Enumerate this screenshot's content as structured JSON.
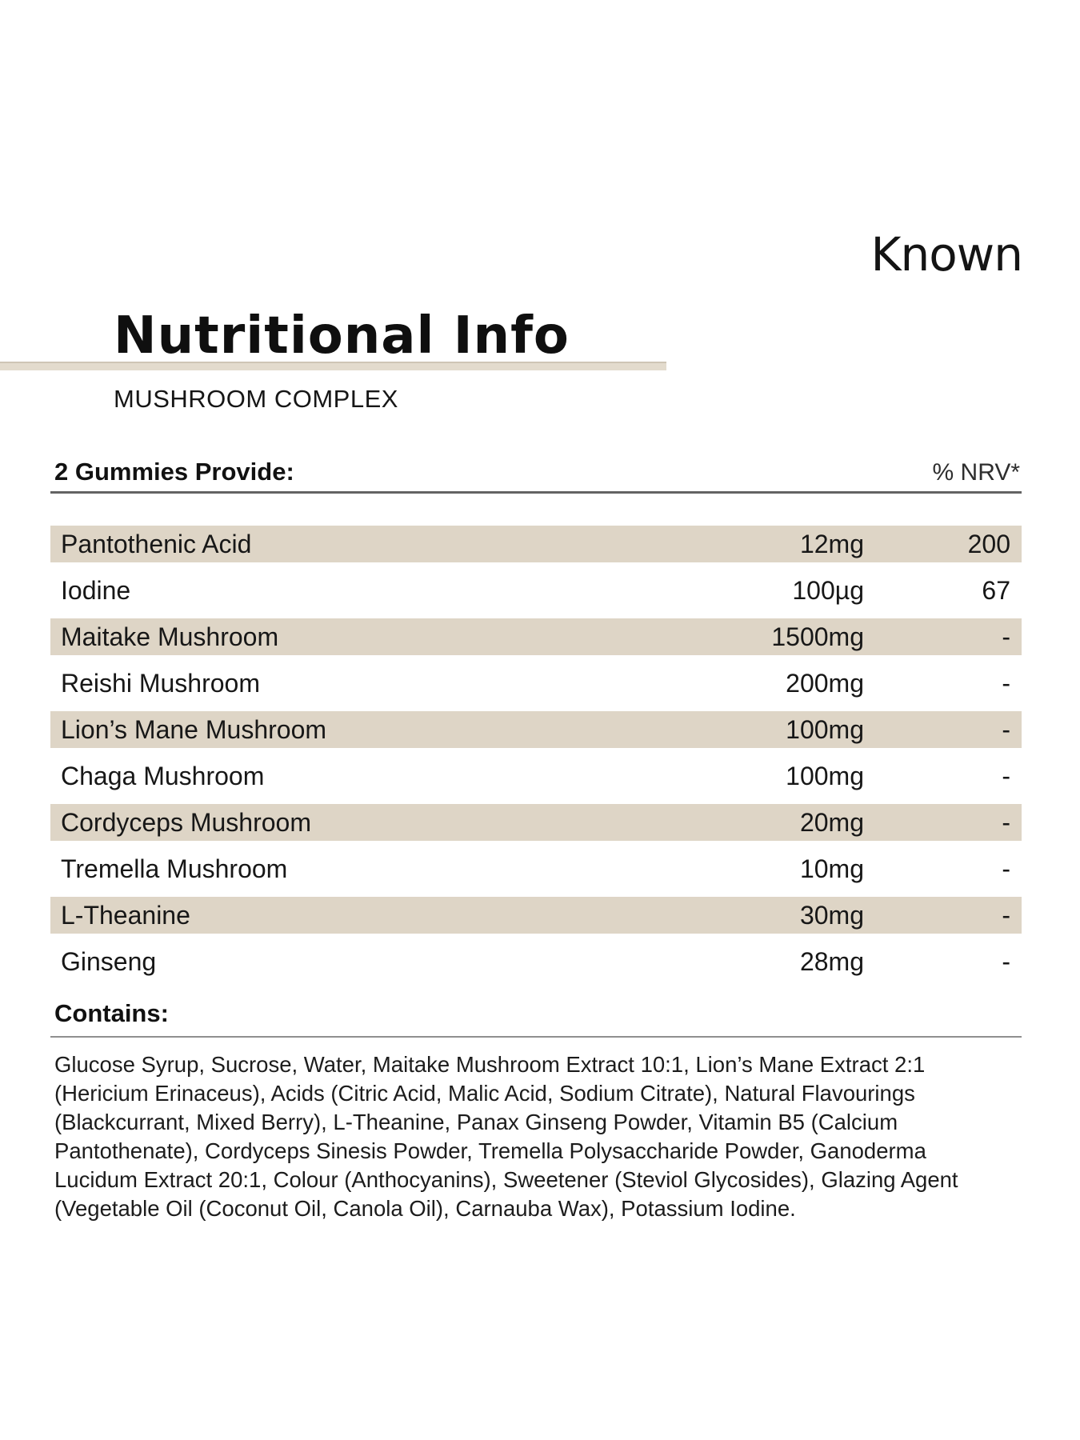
{
  "brand": {
    "logo_text": "Known"
  },
  "header": {
    "title": "Nutritional Info",
    "subtitle": "MUSHROOM COMPLEX"
  },
  "table": {
    "serving_label": "2 Gummies Provide:",
    "nrv_label": "% NRV*",
    "rows": [
      {
        "name": "Pantothenic Acid",
        "amount": "12mg",
        "nrv": "200"
      },
      {
        "name": "Iodine",
        "amount": "100µg",
        "nrv": "67"
      },
      {
        "name": "Maitake Mushroom",
        "amount": "1500mg",
        "nrv": "-"
      },
      {
        "name": "Reishi Mushroom",
        "amount": "200mg",
        "nrv": "-"
      },
      {
        "name": "Lion’s Mane Mushroom",
        "amount": "100mg",
        "nrv": "-"
      },
      {
        "name": "Chaga Mushroom",
        "amount": "100mg",
        "nrv": "-"
      },
      {
        "name": "Cordyceps Mushroom",
        "amount": "20mg",
        "nrv": "-"
      },
      {
        "name": "Tremella Mushroom",
        "amount": "10mg",
        "nrv": "-"
      },
      {
        "name": "L-Theanine",
        "amount": "30mg",
        "nrv": "-"
      },
      {
        "name": "Ginseng",
        "amount": "28mg",
        "nrv": "-"
      }
    ]
  },
  "contains": {
    "label": "Contains:",
    "lines": [
      "Glucose Syrup, Sucrose, Water, Maitake Mushroom Extract 10:1, Lion’s Mane Extract 2:1",
      "(Hericium Erinaceus), Acids (Citric Acid, Malic Acid, Sodium Citrate), Natural Flavourings",
      "(Blackcurrant, Mixed Berry), L-Theanine, Panax Ginseng Powder, Vitamin B5 (Calcium",
      "Pantothenate), Cordyceps Sinesis Powder, Tremella Polysaccharide Powder, Ganoderma",
      "Lucidum Extract 20:1, Colour (Anthocyanins), Sweetener (Steviol Glycosides), Glazing Agent",
      "(Vegetable Oil (Coconut Oil, Canola Oil), Carnauba Wax), Potassium Iodine."
    ]
  },
  "colors": {
    "stripe_beige": "#ded5c6",
    "title_bar_beige": "#e3dbcd",
    "text": "#1a1a1a",
    "header_rule": "#636363",
    "contains_rule": "#8f8f8f"
  }
}
